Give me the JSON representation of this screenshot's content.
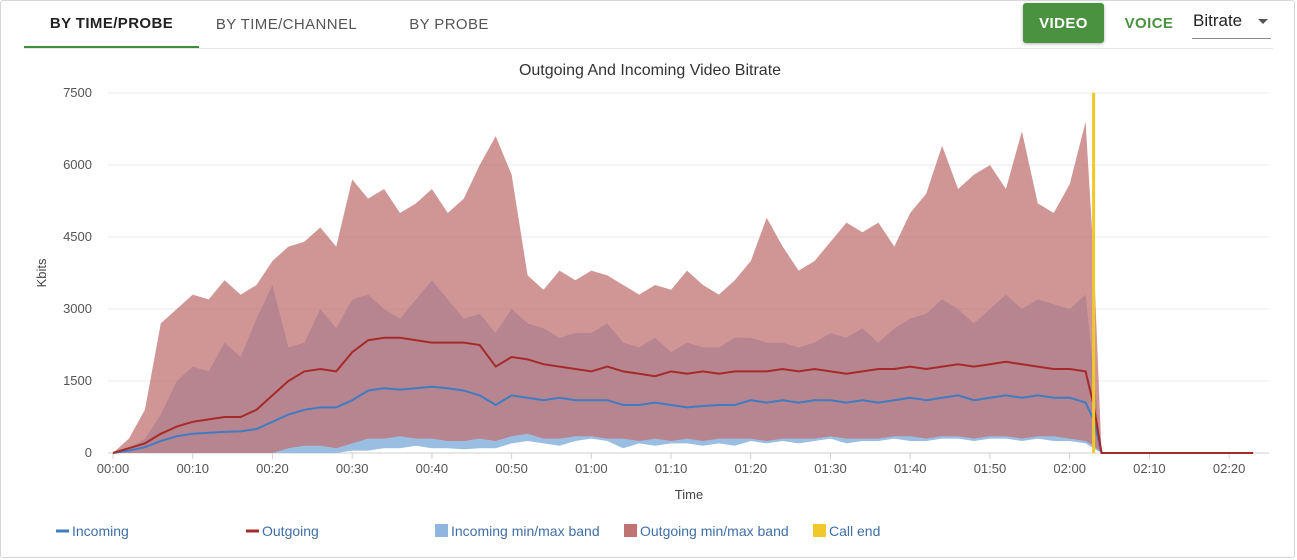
{
  "tabs": [
    {
      "label": "BY TIME/PROBE",
      "active": true
    },
    {
      "label": "BY TIME/CHANNEL",
      "active": false
    },
    {
      "label": "BY PROBE",
      "active": false
    }
  ],
  "media_buttons": {
    "video_label": "VIDEO",
    "voice_label": "VOICE",
    "active": "video"
  },
  "metric_select": {
    "value": "Bitrate"
  },
  "colors": {
    "accent": "#4a9140",
    "incoming": "#3f7cc2",
    "outgoing": "#a52a2a",
    "incoming_band": "#8fb6df",
    "outgoing_band": "#c07373",
    "call_end": "#f0c829"
  },
  "chart_data": {
    "type": "area",
    "title": "Outgoing And Incoming Video Bitrate",
    "xlabel": "Time",
    "ylabel": "Kbits",
    "ylim": [
      0,
      7500
    ],
    "y_ticks": [
      "0",
      "1500",
      "3000",
      "4500",
      "6000",
      "7500"
    ],
    "xlim_min": [
      0,
      145
    ],
    "x_ticks": [
      {
        "min": 0,
        "label": "00:00"
      },
      {
        "min": 10,
        "label": "00:10"
      },
      {
        "min": 20,
        "label": "00:20"
      },
      {
        "min": 30,
        "label": "00:30"
      },
      {
        "min": 40,
        "label": "00:40"
      },
      {
        "min": 50,
        "label": "00:50"
      },
      {
        "min": 60,
        "label": "01:00"
      },
      {
        "min": 70,
        "label": "01:10"
      },
      {
        "min": 80,
        "label": "01:20"
      },
      {
        "min": 90,
        "label": "01:30"
      },
      {
        "min": 100,
        "label": "01:40"
      },
      {
        "min": 110,
        "label": "01:50"
      },
      {
        "min": 120,
        "label": "02:00"
      },
      {
        "min": 130,
        "label": "02:10"
      },
      {
        "min": 140,
        "label": "02:20"
      }
    ],
    "grid": true,
    "legend_position": "bottom",
    "call_end_min": 123,
    "series": [
      {
        "name": "Incoming",
        "kind": "line",
        "x": [
          0,
          2,
          4,
          6,
          8,
          10,
          12,
          14,
          16,
          18,
          20,
          22,
          24,
          26,
          28,
          30,
          32,
          34,
          36,
          38,
          40,
          42,
          44,
          46,
          48,
          50,
          52,
          54,
          56,
          58,
          60,
          62,
          64,
          66,
          68,
          70,
          72,
          74,
          76,
          78,
          80,
          82,
          84,
          86,
          88,
          90,
          92,
          94,
          96,
          98,
          100,
          102,
          104,
          106,
          108,
          110,
          112,
          114,
          116,
          118,
          120,
          122,
          123,
          124,
          130,
          140,
          143
        ],
        "y": [
          0,
          50,
          120,
          250,
          350,
          400,
          420,
          440,
          450,
          500,
          650,
          800,
          900,
          950,
          950,
          1100,
          1300,
          1350,
          1320,
          1350,
          1380,
          1350,
          1300,
          1200,
          1000,
          1200,
          1150,
          1100,
          1150,
          1100,
          1100,
          1100,
          1000,
          1000,
          1050,
          1000,
          950,
          980,
          1000,
          1000,
          1100,
          1050,
          1100,
          1050,
          1100,
          1100,
          1050,
          1100,
          1050,
          1100,
          1150,
          1100,
          1150,
          1200,
          1100,
          1150,
          1200,
          1150,
          1200,
          1150,
          1150,
          1050,
          700,
          0,
          0,
          0,
          0
        ]
      },
      {
        "name": "Outgoing",
        "kind": "line",
        "x": [
          0,
          2,
          4,
          6,
          8,
          10,
          12,
          14,
          16,
          18,
          20,
          22,
          24,
          26,
          28,
          30,
          32,
          34,
          36,
          38,
          40,
          42,
          44,
          46,
          48,
          50,
          52,
          54,
          56,
          58,
          60,
          62,
          64,
          66,
          68,
          70,
          72,
          74,
          76,
          78,
          80,
          82,
          84,
          86,
          88,
          90,
          92,
          94,
          96,
          98,
          100,
          102,
          104,
          106,
          108,
          110,
          112,
          114,
          116,
          118,
          120,
          122,
          123,
          124,
          130,
          140,
          143
        ],
        "y": [
          0,
          100,
          200,
          400,
          550,
          650,
          700,
          750,
          750,
          900,
          1200,
          1500,
          1700,
          1750,
          1700,
          2100,
          2350,
          2400,
          2400,
          2350,
          2300,
          2300,
          2300,
          2250,
          1800,
          2000,
          1950,
          1850,
          1800,
          1750,
          1700,
          1800,
          1700,
          1650,
          1600,
          1700,
          1650,
          1700,
          1650,
          1700,
          1700,
          1700,
          1750,
          1700,
          1750,
          1700,
          1650,
          1700,
          1750,
          1750,
          1800,
          1750,
          1800,
          1850,
          1800,
          1850,
          1900,
          1850,
          1800,
          1750,
          1750,
          1700,
          1000,
          0,
          0,
          0,
          0
        ]
      },
      {
        "name": "Incoming min/max band",
        "kind": "band",
        "x": [
          0,
          2,
          4,
          6,
          8,
          10,
          12,
          14,
          16,
          18,
          20,
          22,
          24,
          26,
          28,
          30,
          32,
          34,
          36,
          38,
          40,
          42,
          44,
          46,
          48,
          50,
          52,
          54,
          56,
          58,
          60,
          62,
          64,
          66,
          68,
          70,
          72,
          74,
          76,
          78,
          80,
          82,
          84,
          86,
          88,
          90,
          92,
          94,
          96,
          98,
          100,
          102,
          104,
          106,
          108,
          110,
          112,
          114,
          116,
          118,
          120,
          122,
          123,
          124,
          130,
          140,
          143
        ],
        "low": [
          0,
          0,
          0,
          0,
          0,
          0,
          0,
          0,
          0,
          0,
          0,
          0,
          0,
          0,
          0,
          50,
          50,
          100,
          100,
          150,
          100,
          100,
          80,
          100,
          100,
          200,
          250,
          200,
          150,
          250,
          300,
          250,
          100,
          200,
          150,
          200,
          200,
          150,
          200,
          150,
          250,
          200,
          250,
          200,
          250,
          300,
          200,
          250,
          250,
          300,
          250,
          250,
          300,
          300,
          250,
          300,
          300,
          250,
          300,
          250,
          250,
          200,
          100,
          0,
          0,
          0,
          0
        ],
        "high": [
          0,
          100,
          300,
          800,
          1500,
          1800,
          1700,
          2300,
          2000,
          2800,
          3500,
          2200,
          2300,
          3000,
          2600,
          3200,
          3300,
          3000,
          2800,
          3200,
          3600,
          3200,
          2800,
          2900,
          2500,
          3000,
          2700,
          2600,
          2400,
          2500,
          2500,
          2700,
          2300,
          2200,
          2400,
          2100,
          2300,
          2200,
          2200,
          2400,
          2400,
          2300,
          2300,
          2200,
          2300,
          2500,
          2400,
          2600,
          2300,
          2600,
          2800,
          2900,
          3200,
          3000,
          2700,
          3000,
          3300,
          3000,
          3200,
          3100,
          3000,
          3300,
          1700,
          0,
          0,
          0,
          0
        ]
      },
      {
        "name": "Outgoing min/max band",
        "kind": "band",
        "x": [
          0,
          2,
          4,
          6,
          8,
          10,
          12,
          14,
          16,
          18,
          20,
          22,
          24,
          26,
          28,
          30,
          32,
          34,
          36,
          38,
          40,
          42,
          44,
          46,
          48,
          50,
          52,
          54,
          56,
          58,
          60,
          62,
          64,
          66,
          68,
          70,
          72,
          74,
          76,
          78,
          80,
          82,
          84,
          86,
          88,
          90,
          92,
          94,
          96,
          98,
          100,
          102,
          104,
          106,
          108,
          110,
          112,
          114,
          116,
          118,
          120,
          122,
          123,
          124,
          130,
          140,
          143
        ],
        "low": [
          0,
          0,
          0,
          0,
          0,
          0,
          0,
          0,
          0,
          0,
          0,
          100,
          150,
          150,
          100,
          200,
          300,
          300,
          350,
          300,
          300,
          250,
          250,
          300,
          250,
          350,
          400,
          300,
          300,
          350,
          350,
          300,
          300,
          250,
          300,
          250,
          300,
          250,
          300,
          300,
          300,
          250,
          300,
          300,
          300,
          350,
          300,
          300,
          300,
          350,
          350,
          300,
          350,
          350,
          300,
          350,
          350,
          300,
          350,
          350,
          300,
          250,
          150,
          0,
          0,
          0,
          0
        ],
        "high": [
          0,
          300,
          900,
          2700,
          3000,
          3300,
          3200,
          3600,
          3300,
          3500,
          4000,
          4300,
          4400,
          4700,
          4300,
          5700,
          5300,
          5500,
          5000,
          5200,
          5500,
          5000,
          5300,
          6000,
          6600,
          5800,
          3700,
          3400,
          3800,
          3600,
          3800,
          3700,
          3500,
          3300,
          3500,
          3400,
          3800,
          3500,
          3300,
          3600,
          4000,
          4900,
          4300,
          3800,
          4000,
          4400,
          4800,
          4600,
          4800,
          4300,
          5000,
          5400,
          6400,
          5500,
          5800,
          6000,
          5500,
          6700,
          5200,
          5000,
          5600,
          6900,
          4100,
          0,
          0,
          0,
          0
        ]
      }
    ]
  },
  "legend": [
    {
      "label": "Incoming",
      "kind": "line",
      "color": "#3f7cc2"
    },
    {
      "label": "Outgoing",
      "kind": "line",
      "color": "#a52a2a"
    },
    {
      "label": "Incoming min/max band",
      "kind": "box",
      "color": "#8fb6df"
    },
    {
      "label": "Outgoing min/max band",
      "kind": "box",
      "color": "#c07373"
    },
    {
      "label": "Call end",
      "kind": "box",
      "color": "#f0c829"
    }
  ]
}
